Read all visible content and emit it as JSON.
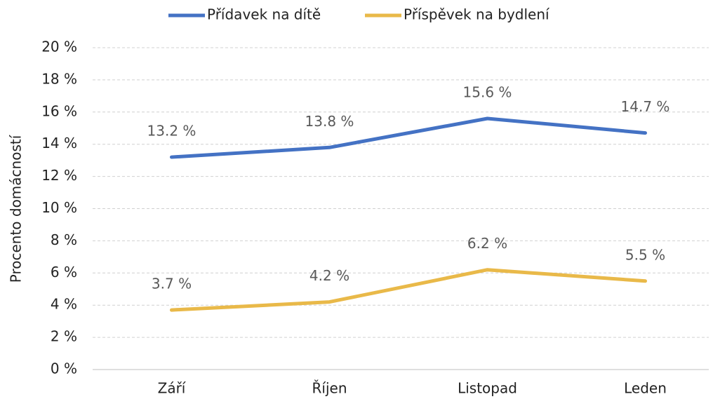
{
  "chart_data": {
    "type": "line",
    "categories": [
      "Září",
      "Říjen",
      "Listopad",
      "Leden"
    ],
    "series": [
      {
        "name": "Přídavek na dítě",
        "color": "#4472c4",
        "values": [
          13.2,
          13.8,
          15.6,
          14.7
        ],
        "value_labels": [
          "13.2 %",
          "13.8 %",
          "15.6 %",
          "14.7 %"
        ]
      },
      {
        "name": "Příspěvek na bydlení",
        "color": "#e9b949",
        "values": [
          3.7,
          4.2,
          6.2,
          5.5
        ],
        "value_labels": [
          "3.7 %",
          "4.2 %",
          "6.2 %",
          "5.5 %"
        ]
      }
    ],
    "y_label": "Procento domácností",
    "ylim": [
      0,
      20
    ],
    "yticks": [
      {
        "value": 0,
        "label": "0 %"
      },
      {
        "value": 2,
        "label": "2 %"
      },
      {
        "value": 4,
        "label": "4 %"
      },
      {
        "value": 6,
        "label": "6 %"
      },
      {
        "value": 8,
        "label": "8 %"
      },
      {
        "value": 10,
        "label": "10 %"
      },
      {
        "value": 12,
        "label": "12 %"
      },
      {
        "value": 14,
        "label": "14 %"
      },
      {
        "value": 16,
        "label": "16 %"
      },
      {
        "value": 18,
        "label": "18 %"
      },
      {
        "value": 20,
        "label": "20 %"
      }
    ],
    "grid": true,
    "legend": "top"
  }
}
